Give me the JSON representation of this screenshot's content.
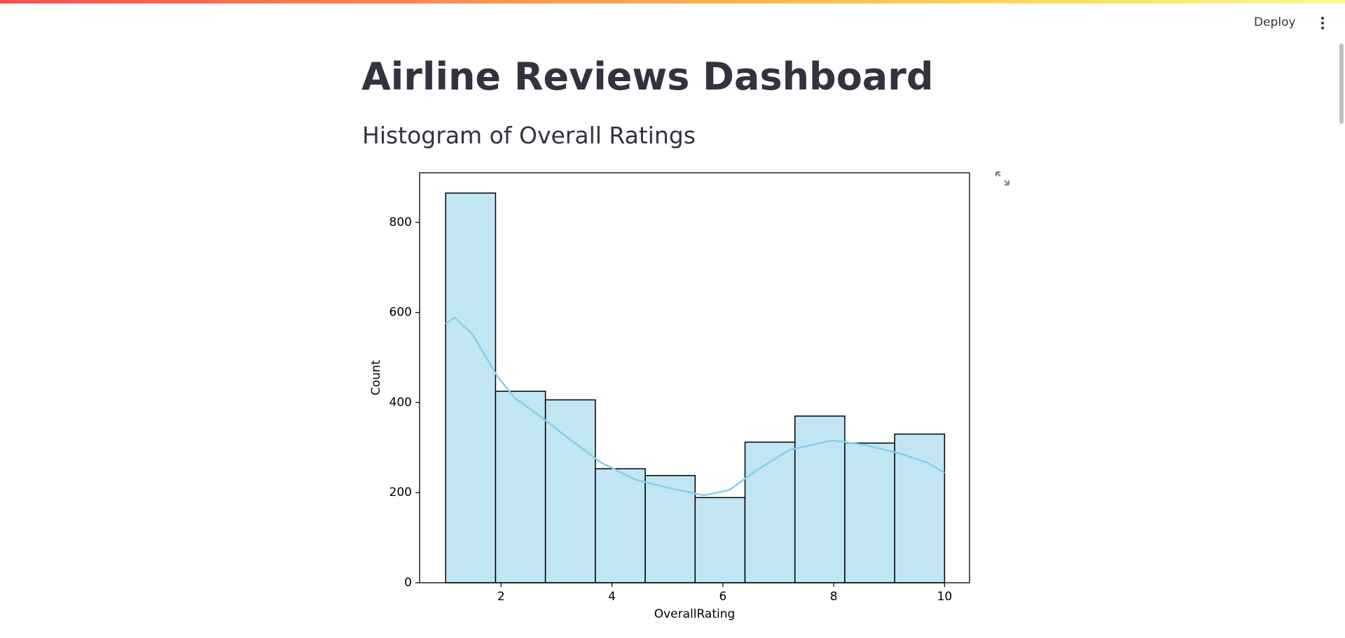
{
  "header": {
    "deploy": "Deploy"
  },
  "title": "Airline Reviews Dashboard",
  "subtitle": "Histogram of Overall Ratings",
  "chart_data": {
    "type": "histogram",
    "bins": [
      1,
      1.9,
      2.8,
      3.7,
      4.6,
      5.5,
      6.4,
      7.3,
      8.2,
      9.1,
      10
    ],
    "values": [
      865,
      425,
      406,
      253,
      238,
      189,
      312,
      370,
      310,
      330
    ],
    "color": "#c2e5f3",
    "edgecolor": "#000000",
    "kde": {
      "x": [
        1,
        1.16,
        1.48,
        1.94,
        2.25,
        2.72,
        3.18,
        3.8,
        4.42,
        5.04,
        5.66,
        6.12,
        6.59,
        7.2,
        7.98,
        8.6,
        9.22,
        9.68,
        10
      ],
      "y": [
        575,
        589,
        552,
        457,
        410,
        368,
        324,
        267,
        229,
        210,
        194,
        206,
        248,
        295,
        316,
        305,
        286,
        267,
        244
      ],
      "color": "#87ceeb"
    },
    "xlabel": "OverallRating",
    "ylabel": "Count",
    "xlim": [
      0.53,
      10.45
    ],
    "ylim": [
      0,
      910
    ],
    "xticks": [
      2,
      4,
      6,
      8,
      10
    ],
    "yticks": [
      0,
      200,
      400,
      600,
      800
    ]
  }
}
